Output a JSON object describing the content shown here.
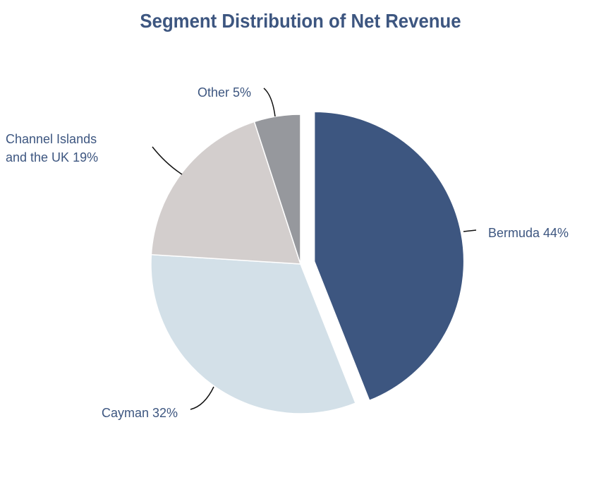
{
  "chart_data": {
    "type": "pie",
    "title": "Segment Distribution of Net Revenue",
    "slices": [
      {
        "name": "Bermuda",
        "value": 44,
        "label": "Bermuda 44%",
        "color": "#3d5680",
        "exploded": true
      },
      {
        "name": "Cayman",
        "value": 32,
        "label": "Cayman 32%",
        "color": "#d3e0e8",
        "exploded": false
      },
      {
        "name": "Channel Islands and the UK",
        "value": 19,
        "label_lines": [
          "Channel Islands",
          "and the UK 19%"
        ],
        "color": "#d3cecd",
        "exploded": false
      },
      {
        "name": "Other",
        "value": 5,
        "label": "Other 5%",
        "color": "#96989d",
        "exploded": false
      }
    ],
    "start_angle": "12 o'clock",
    "direction": "clockwise",
    "legend": "none"
  }
}
